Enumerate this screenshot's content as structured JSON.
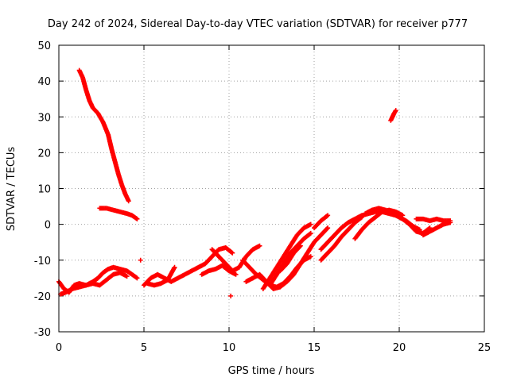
{
  "chart_data": {
    "type": "scatter",
    "title": "Day 242 of 2024, Sidereal Day-to-day VTEC variation (SDTVAR) for receiver p777",
    "xlabel": "GPS time / hours",
    "ylabel": "SDTVAR / TECUs",
    "xlim": [
      0,
      25
    ],
    "ylim": [
      -30,
      50
    ],
    "xticks": [
      0,
      5,
      10,
      15,
      20,
      25
    ],
    "yticks": [
      -30,
      -20,
      -10,
      0,
      10,
      20,
      30,
      40,
      50
    ],
    "grid": true,
    "marker": "plus",
    "color": "#ff0000",
    "series": [
      {
        "name": "s1",
        "points": [
          [
            1.2,
            43
          ],
          [
            1.4,
            41
          ],
          [
            1.6,
            37.5
          ],
          [
            1.8,
            34.5
          ],
          [
            2.0,
            32.5
          ],
          [
            2.3,
            31
          ],
          [
            2.6,
            28.5
          ],
          [
            2.9,
            25
          ],
          [
            3.1,
            21
          ],
          [
            3.3,
            17.5
          ],
          [
            3.5,
            14
          ],
          [
            3.7,
            11
          ],
          [
            3.9,
            8.5
          ],
          [
            4.1,
            6.5
          ]
        ]
      },
      {
        "name": "s2",
        "points": [
          [
            2.4,
            4.5
          ],
          [
            2.8,
            4.5
          ],
          [
            3.2,
            4
          ],
          [
            3.6,
            3.5
          ],
          [
            4.0,
            3
          ],
          [
            4.3,
            2.5
          ],
          [
            4.6,
            1.5
          ]
        ]
      },
      {
        "name": "s3",
        "points": [
          [
            0,
            -16
          ],
          [
            0.3,
            -18
          ],
          [
            0.6,
            -19
          ],
          [
            0.9,
            -17
          ],
          [
            1.2,
            -16.5
          ],
          [
            1.6,
            -17
          ],
          [
            2.0,
            -16
          ],
          [
            2.3,
            -15
          ],
          [
            2.6,
            -13.5
          ],
          [
            2.9,
            -12.5
          ],
          [
            3.2,
            -12
          ],
          [
            3.6,
            -12.5
          ],
          [
            4.0,
            -13
          ],
          [
            4.3,
            -14
          ],
          [
            4.6,
            -15
          ]
        ]
      },
      {
        "name": "s4",
        "points": [
          [
            0.1,
            -19.5
          ],
          [
            0.4,
            -19
          ],
          [
            0.8,
            -18
          ],
          [
            1.2,
            -17.5
          ],
          [
            1.6,
            -17
          ],
          [
            2.0,
            -16.5
          ],
          [
            2.4,
            -17
          ],
          [
            2.8,
            -15.5
          ],
          [
            3.2,
            -14
          ],
          [
            3.6,
            -13.5
          ],
          [
            4.0,
            -14.5
          ]
        ]
      },
      {
        "name": "s5",
        "points": [
          [
            5.0,
            -17
          ],
          [
            5.4,
            -15
          ],
          [
            5.8,
            -14
          ],
          [
            6.2,
            -15
          ],
          [
            6.6,
            -16
          ],
          [
            7.0,
            -15
          ],
          [
            7.4,
            -14
          ],
          [
            7.8,
            -13
          ],
          [
            8.2,
            -12
          ],
          [
            8.6,
            -11
          ],
          [
            9.0,
            -9
          ],
          [
            9.4,
            -7
          ],
          [
            9.8,
            -6.5
          ],
          [
            10.2,
            -8
          ]
        ]
      },
      {
        "name": "s6",
        "points": [
          [
            5.2,
            -16.5
          ],
          [
            5.6,
            -17
          ],
          [
            6.0,
            -16.5
          ],
          [
            6.4,
            -15.5
          ],
          [
            6.8,
            -12
          ]
        ]
      },
      {
        "name": "s7",
        "points": [
          [
            8.4,
            -14
          ],
          [
            8.8,
            -13
          ],
          [
            9.2,
            -12.5
          ],
          [
            9.6,
            -11.5
          ],
          [
            10.0,
            -13
          ],
          [
            10.4,
            -14
          ]
        ]
      },
      {
        "name": "s8",
        "points": [
          [
            9.0,
            -7
          ],
          [
            9.4,
            -9
          ],
          [
            9.8,
            -11
          ],
          [
            10.2,
            -13
          ],
          [
            10.6,
            -12
          ],
          [
            11.0,
            -9
          ],
          [
            11.4,
            -7
          ],
          [
            11.8,
            -6
          ]
        ]
      },
      {
        "name": "s9",
        "points": [
          [
            10.8,
            -10
          ],
          [
            11.2,
            -12
          ],
          [
            11.6,
            -14
          ],
          [
            12.0,
            -15.5
          ],
          [
            12.4,
            -17
          ],
          [
            12.8,
            -17.5
          ],
          [
            13.2,
            -16.5
          ],
          [
            13.6,
            -14.5
          ],
          [
            14.0,
            -12
          ],
          [
            14.4,
            -10
          ],
          [
            14.8,
            -9
          ]
        ]
      },
      {
        "name": "s10",
        "points": [
          [
            11.0,
            -16
          ],
          [
            11.4,
            -15
          ],
          [
            11.8,
            -14
          ],
          [
            12.2,
            -16
          ],
          [
            12.6,
            -18
          ],
          [
            13.0,
            -17.5
          ],
          [
            13.4,
            -16
          ],
          [
            13.8,
            -14
          ],
          [
            14.2,
            -11
          ],
          [
            14.6,
            -8
          ],
          [
            15.0,
            -5
          ],
          [
            15.4,
            -3
          ],
          [
            15.8,
            -1
          ]
        ]
      },
      {
        "name": "s11",
        "points": [
          [
            12.0,
            -18
          ],
          [
            12.4,
            -15
          ],
          [
            12.8,
            -12
          ],
          [
            13.2,
            -9
          ],
          [
            13.6,
            -6
          ],
          [
            14.0,
            -3
          ],
          [
            14.4,
            -1
          ],
          [
            14.8,
            0
          ]
        ]
      },
      {
        "name": "s12",
        "points": [
          [
            12.4,
            -17
          ],
          [
            12.8,
            -14
          ],
          [
            13.2,
            -11
          ],
          [
            13.6,
            -8
          ],
          [
            14.0,
            -6
          ],
          [
            14.4,
            -4
          ],
          [
            14.8,
            -2.5
          ]
        ]
      },
      {
        "name": "s13",
        "points": [
          [
            13.0,
            -13
          ],
          [
            13.4,
            -11
          ],
          [
            13.8,
            -8
          ],
          [
            14.2,
            -6
          ]
        ]
      },
      {
        "name": "s14",
        "points": [
          [
            15.0,
            -1
          ],
          [
            15.4,
            1
          ],
          [
            15.8,
            2.5
          ]
        ]
      },
      {
        "name": "s15",
        "points": [
          [
            15.4,
            -7
          ],
          [
            15.8,
            -5
          ],
          [
            16.2,
            -3
          ],
          [
            16.6,
            -1
          ],
          [
            17.0,
            0.5
          ],
          [
            17.4,
            1.5
          ],
          [
            17.8,
            2.5
          ],
          [
            18.2,
            3
          ],
          [
            18.6,
            3.5
          ],
          [
            19.0,
            3.5
          ],
          [
            19.4,
            3
          ],
          [
            19.8,
            2.5
          ],
          [
            20.2,
            1.5
          ],
          [
            20.6,
            0
          ],
          [
            21.0,
            -2
          ],
          [
            21.4,
            -2.5
          ],
          [
            21.8,
            -1
          ]
        ]
      },
      {
        "name": "s16",
        "points": [
          [
            15.4,
            -10
          ],
          [
            15.8,
            -8
          ],
          [
            16.2,
            -6
          ],
          [
            16.6,
            -3.5
          ],
          [
            17.0,
            -1.5
          ],
          [
            17.4,
            0.5
          ],
          [
            17.8,
            2
          ]
        ]
      },
      {
        "name": "s17",
        "points": [
          [
            17.4,
            -4
          ],
          [
            17.8,
            -1.5
          ],
          [
            18.2,
            0.5
          ],
          [
            18.6,
            2
          ],
          [
            19.0,
            3.5
          ],
          [
            19.4,
            4
          ],
          [
            19.8,
            3.5
          ],
          [
            20.2,
            2.5
          ]
        ]
      },
      {
        "name": "s18",
        "points": [
          [
            18.0,
            3
          ],
          [
            18.4,
            4
          ],
          [
            18.8,
            4.5
          ],
          [
            19.2,
            4
          ],
          [
            19.6,
            3
          ],
          [
            20.0,
            2
          ],
          [
            20.4,
            1
          ],
          [
            20.8,
            -0.5
          ],
          [
            21.2,
            -1.5
          ]
        ]
      },
      {
        "name": "s19",
        "points": [
          [
            21.0,
            1.5
          ],
          [
            21.4,
            1.5
          ],
          [
            21.8,
            1
          ],
          [
            22.2,
            1.5
          ],
          [
            22.6,
            1
          ],
          [
            23.0,
            1
          ]
        ]
      },
      {
        "name": "s20",
        "points": [
          [
            21.4,
            -3
          ],
          [
            21.8,
            -2
          ],
          [
            22.2,
            -1
          ],
          [
            22.6,
            0
          ],
          [
            23.0,
            0.5
          ]
        ]
      },
      {
        "name": "s21",
        "points": [
          [
            19.5,
            29
          ],
          [
            19.6,
            30
          ],
          [
            19.7,
            31
          ],
          [
            19.8,
            31.8
          ]
        ]
      },
      {
        "name": "s22",
        "points": [
          [
            4.8,
            -10
          ],
          [
            10.1,
            -20
          ]
        ]
      }
    ]
  }
}
